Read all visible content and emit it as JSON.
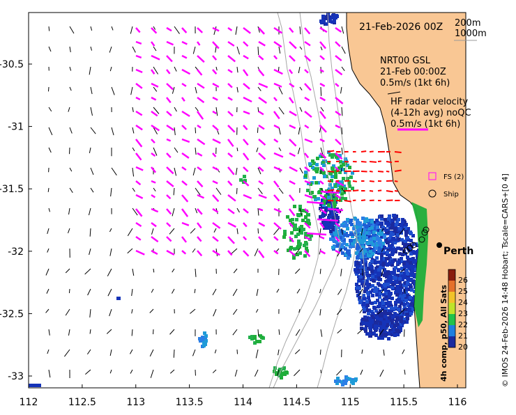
{
  "map": {
    "title_date": "21-Feb-2026 00Z",
    "depth_contours": [
      "200m",
      "1000m"
    ],
    "product_labels": [
      "NRT00 GSL",
      "21-Feb 00:00Z",
      "0.5m/s (1kt 6h)"
    ],
    "radar_labels": [
      "HF radar velocity",
      "(4-12h avg) noQC",
      "0.5m/s (1kt 6h)"
    ],
    "legend": {
      "fs_label": "FS (2)",
      "ship_label": "Ship"
    },
    "city_label": "Perth",
    "colorbar": {
      "title": "4h comp, p50, All Sats",
      "ticks": [
        "26",
        "25",
        "24",
        "23",
        "22",
        "21",
        "20"
      ]
    },
    "x_ticks": [
      "112",
      "112.5",
      "113",
      "113.5",
      "114",
      "114.5",
      "115",
      "115.5",
      "116"
    ],
    "y_ticks": [
      "-30.5",
      "-31",
      "-31.5",
      "-32",
      "-32.5",
      "-33"
    ],
    "credit": "© IMOS 24-Feb-2026 14:48 Hobart; Tscale=CARS+[0 4]",
    "colors": {
      "land": "#f9c794",
      "radar_vector": "#ff00ff",
      "model_vector": "#000000",
      "bathymetry": "#a0a0a0",
      "cold": "#1b2a9e",
      "warm": "#22b14c"
    }
  }
}
